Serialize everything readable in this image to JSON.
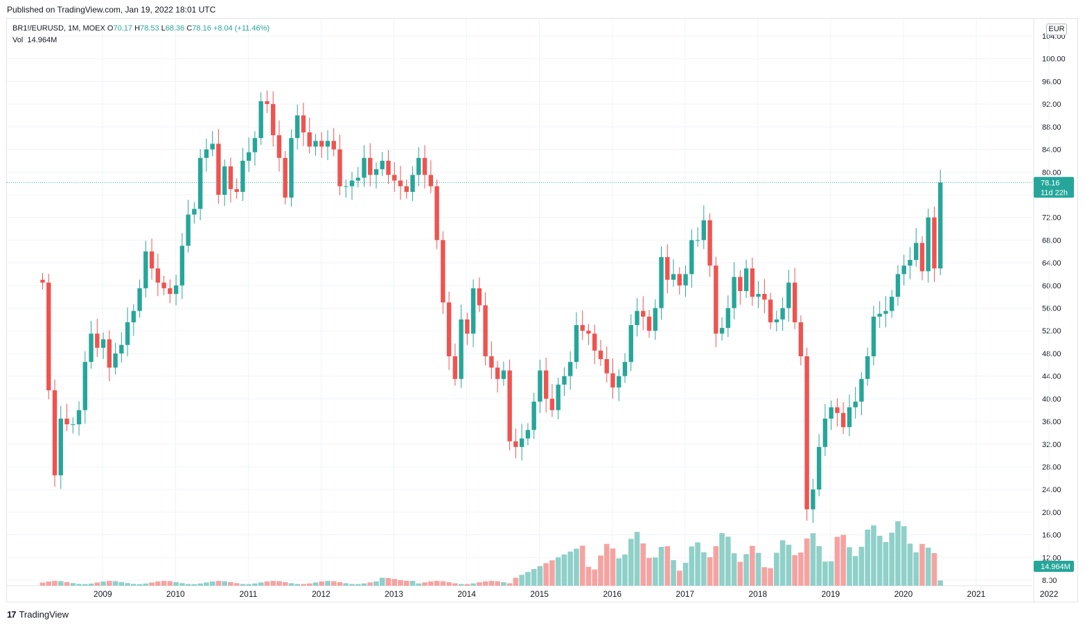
{
  "header": {
    "published": "Published on TradingView.com, Jan 19, 2022 18:01 UTC"
  },
  "legend": {
    "symbol": "BR1!/EURUSD, 1M, MOEX",
    "o_label": "O",
    "o_value": "70.17",
    "h_label": "H",
    "h_value": "78.53",
    "l_label": "L",
    "l_value": "68.36",
    "c_label": "C",
    "c_value": "78.16",
    "change": "+8.04 (+11.46%)",
    "vol_label": "Vol",
    "vol_value": "14.964M"
  },
  "currency_button": "EUR",
  "price_badge": {
    "price": "78.16",
    "countdown": "11d 22h"
  },
  "volume_badge": "14.964M",
  "footer": {
    "brand": "TradingView"
  },
  "colors": {
    "up": "#26a69a",
    "down": "#ef5350",
    "vol_up": "#8fd0c9",
    "vol_down": "#f5a3a1",
    "grid": "#f0f3fa"
  },
  "chart_data": {
    "type": "candlestick",
    "interval": "1M",
    "y_axis": {
      "min": 8,
      "max": 104,
      "ticks": [
        8,
        12,
        16,
        20,
        24,
        28,
        32,
        36,
        40,
        44,
        48,
        52,
        56,
        60,
        64,
        68,
        72,
        76,
        80,
        84,
        88,
        92,
        96,
        100,
        104
      ],
      "tick_labels": [
        "8.00",
        "12.00",
        "16.00",
        "20.00",
        "24.00",
        "28.00",
        "32.00",
        "36.00",
        "40.00",
        "44.00",
        "48.00",
        "52.00",
        "56.00",
        "60.00",
        "64.00",
        "68.00",
        "72.00",
        "76.00",
        "80.00",
        "84.00",
        "88.00",
        "92.00",
        "96.00",
        "100.00",
        "104.00"
      ]
    },
    "x_axis": {
      "labels": [
        "2009",
        "2010",
        "2011",
        "2012",
        "2013",
        "2014",
        "2015",
        "2016",
        "2017",
        "2018",
        "2019",
        "2020",
        "2021",
        "2022"
      ]
    },
    "last_close": 78.16,
    "closes": [
      60.5,
      41.5,
      26.5,
      36.5,
      35.5,
      35.5,
      38,
      46.5,
      51.5,
      49,
      50.5,
      45.5,
      48,
      49.5,
      53.5,
      55.5,
      59.5,
      66,
      63,
      60.5,
      59.5,
      58.5,
      60,
      67,
      72.5,
      73.5,
      82.5,
      84,
      85,
      76,
      81,
      77,
      76.5,
      82,
      83.5,
      86,
      92.5,
      92,
      86.5,
      82.5,
      75.5,
      86,
      90,
      87,
      84.5,
      85.5,
      84.5,
      85.5,
      84,
      77.5,
      77.5,
      78.5,
      79,
      82.5,
      79.5,
      80.5,
      82,
      79.5,
      78.5,
      77.5,
      76.5,
      79.5,
      82.5,
      79.5,
      77.5,
      68,
      57,
      47.5,
      43.5,
      54,
      51.5,
      59.5,
      56.5,
      47.5,
      45.5,
      43.5,
      45,
      32.5,
      31.5,
      33,
      34.5,
      39.5,
      45,
      40,
      38,
      42.5,
      44,
      46.5,
      53,
      52,
      51.5,
      48.5,
      47,
      44.5,
      42,
      44,
      46.5,
      53,
      55.5,
      54.5,
      52,
      56,
      65,
      61,
      62,
      60,
      62,
      68,
      68,
      71.5,
      63.5,
      51.5,
      52.5,
      56,
      61.5,
      59,
      63,
      58,
      58.5,
      57.5,
      53.5,
      54,
      56,
      60.5,
      53.5,
      47.5,
      20.5,
      24,
      31.5,
      36.5,
      38.5,
      37.5,
      35,
      38.5,
      39.5,
      43.5,
      47.5,
      54.5,
      55,
      55.5,
      58,
      62,
      63.5,
      64.5,
      67.5,
      62.5,
      72,
      63,
      78.16
    ],
    "volume_label": "Vol",
    "volume_unit": "M",
    "volume_last": 14.964
  }
}
